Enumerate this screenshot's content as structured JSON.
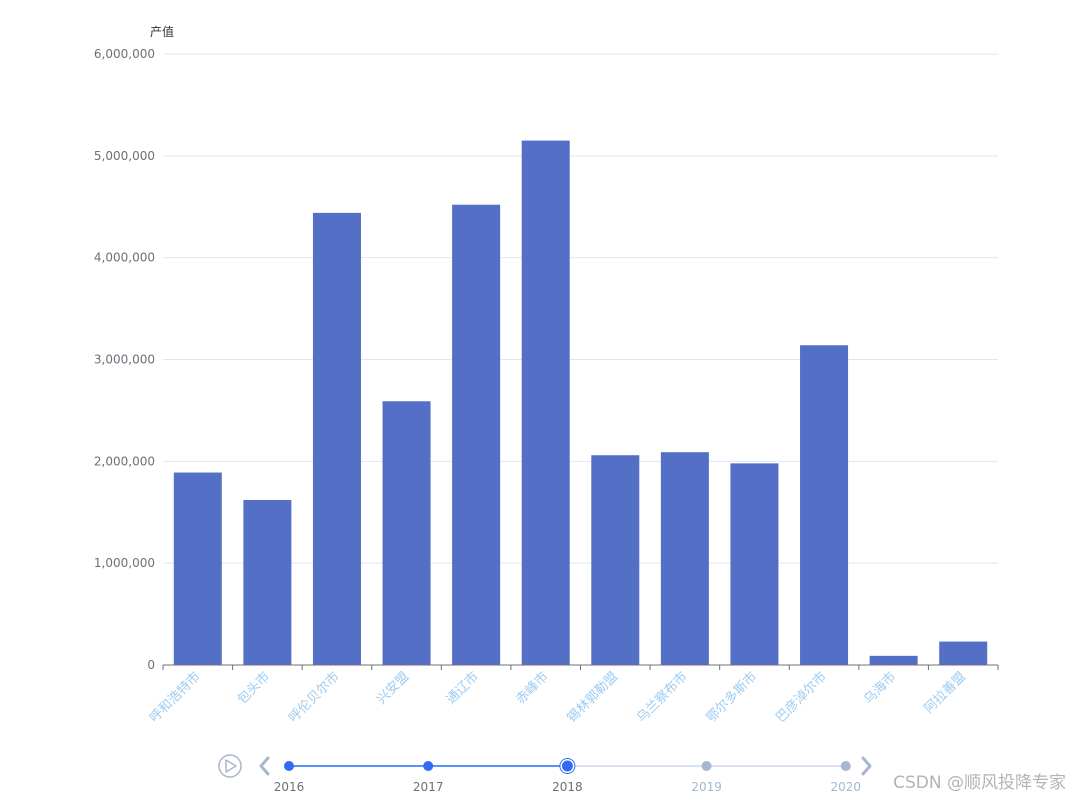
{
  "chart_data": {
    "type": "bar",
    "ylabel": "产值",
    "ylim": [
      0,
      6000000
    ],
    "yticks": [
      0,
      1000000,
      2000000,
      3000000,
      4000000,
      5000000,
      6000000
    ],
    "ytick_labels": [
      "0",
      "1,000,000",
      "2,000,000",
      "3,000,000",
      "4,000,000",
      "5,000,000",
      "6,000,000"
    ],
    "grid": true,
    "bar_color": "#5470c6",
    "categories": [
      "呼和浩特市",
      "包头市",
      "呼伦贝尔市",
      "兴安盟",
      "通辽市",
      "赤峰市",
      "锡林郭勒盟",
      "乌兰察布市",
      "鄂尔多斯市",
      "巴彦淖尔市",
      "乌海市",
      "阿拉善盟"
    ],
    "values": [
      1890000,
      1620000,
      4440000,
      2590000,
      4520000,
      5150000,
      2060000,
      2090000,
      1980000,
      3140000,
      90000,
      230000
    ]
  },
  "timeline": {
    "years": [
      "2016",
      "2017",
      "2018",
      "2019",
      "2020"
    ],
    "current_index": 2,
    "active_color": "#316bf3",
    "inactive_color": "#a7b7cc",
    "track_active_color": "#5b8ff9",
    "track_inactive_color": "#dae1f5"
  },
  "watermark": "CSDN @顺风投降专家"
}
